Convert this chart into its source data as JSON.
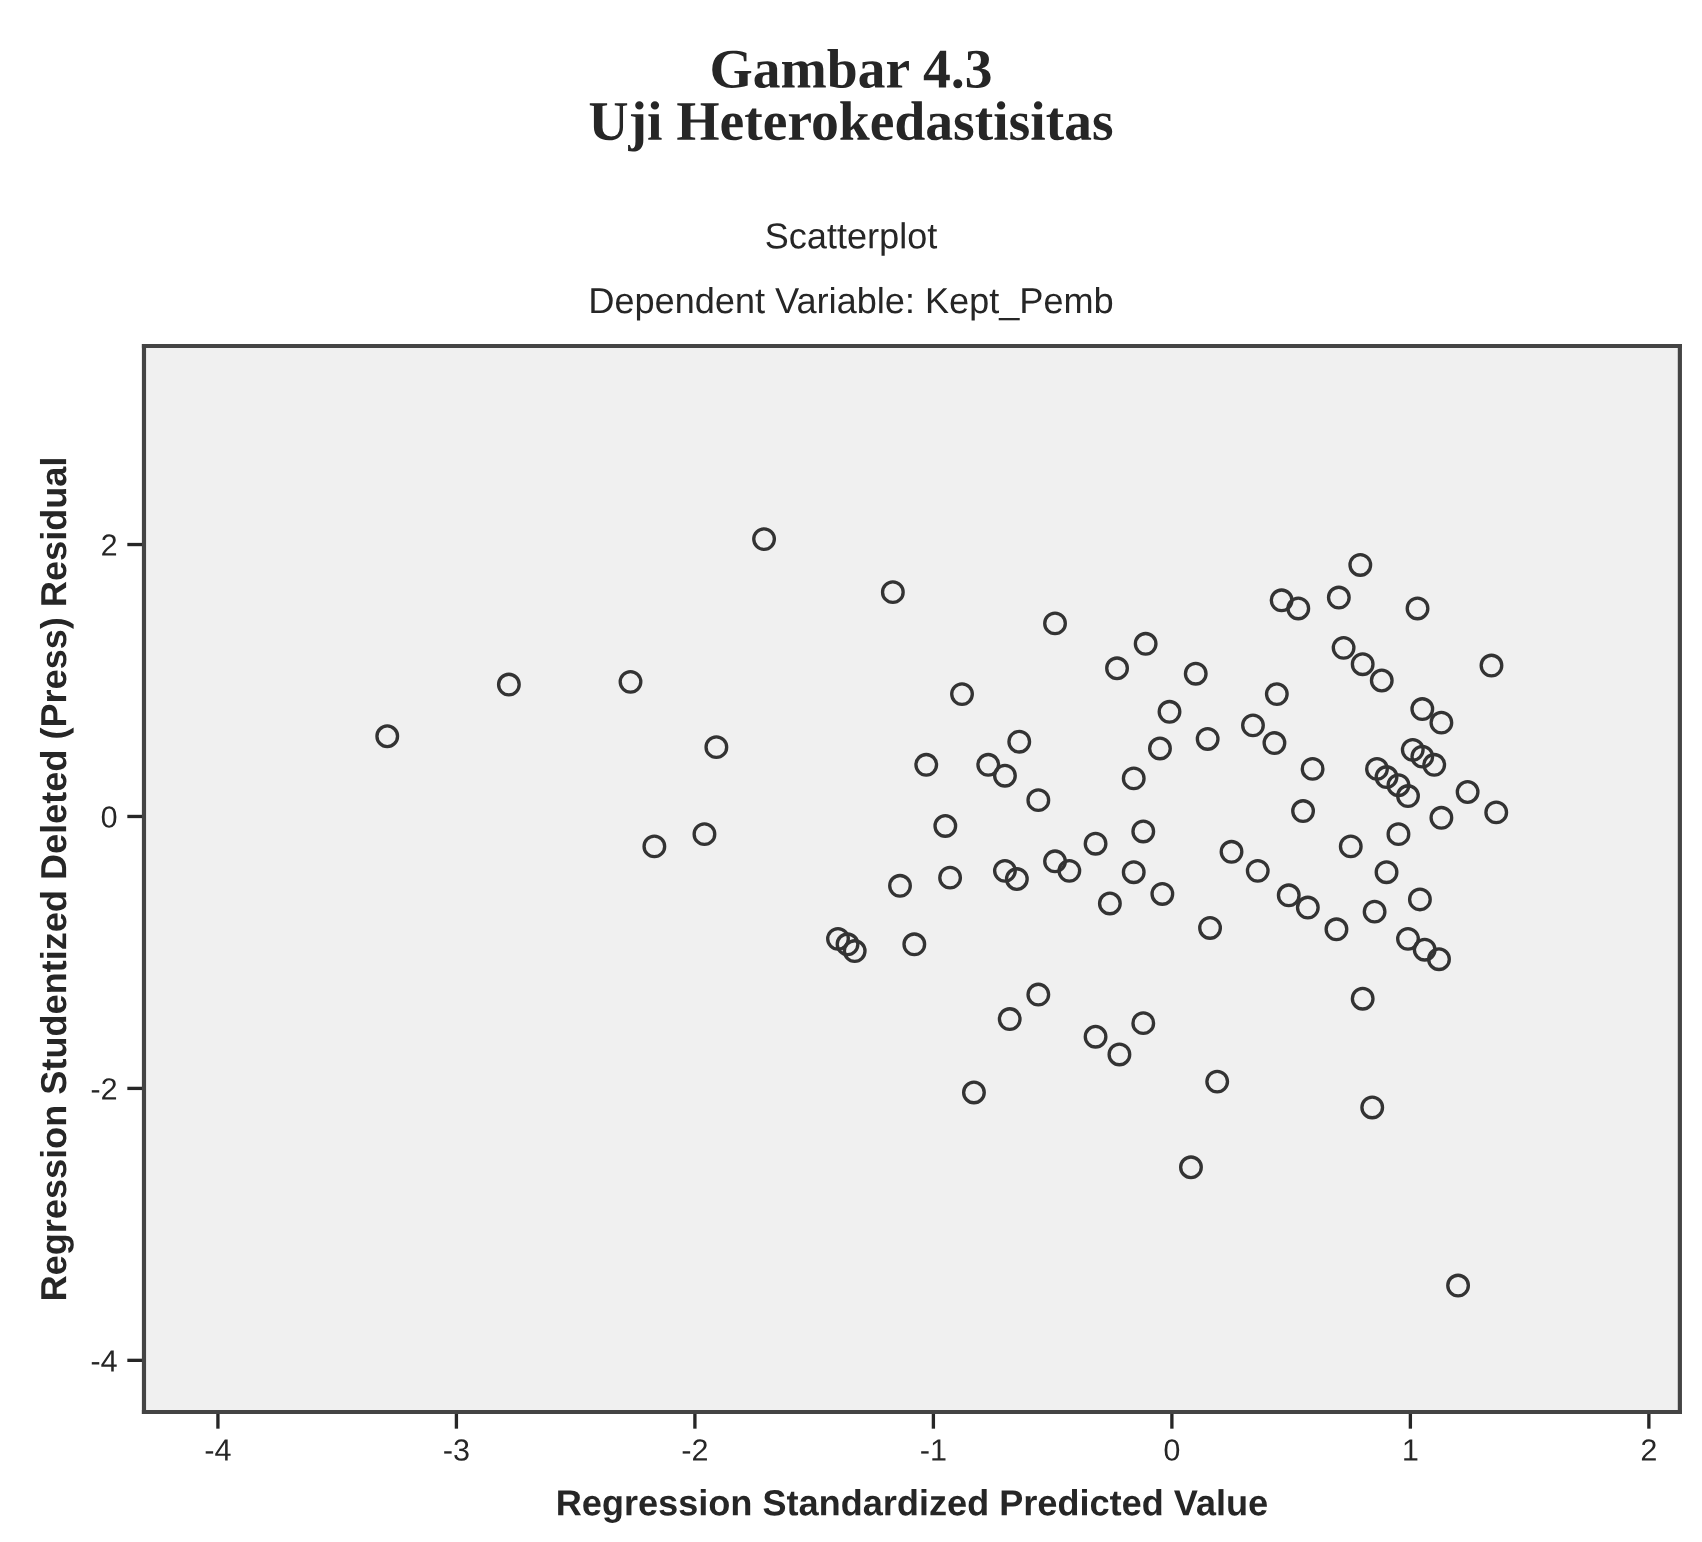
{
  "chart_data": {
    "type": "scatter",
    "title": "Gambar 4.3\nUji Heterokedastisitas",
    "subtitle": "Scatterplot\nDependent Variable: Kept_Pemb",
    "xlabel": "Regression Standardized Predicted Value",
    "ylabel": "Regression Studentized Deleted (Press) Residual",
    "xlim": [
      -4.31,
      2.13
    ],
    "ylim": [
      -4.38,
      3.46
    ],
    "xticks": [
      -4,
      -3,
      -2,
      -1,
      0,
      1,
      2
    ],
    "yticks": [
      -4,
      -2,
      0,
      2
    ],
    "grid": false,
    "marker": "circle",
    "series": [
      {
        "color": "#333333",
        "x": [
          -1.71,
          -1.17,
          -2.78,
          -2.27,
          -3.29,
          -1.91,
          -1.03,
          -1.96,
          -2.17,
          -1.14,
          -1.4,
          -1.36,
          -1.33,
          -1.08,
          -0.49,
          -0.88,
          -0.11,
          -0.23,
          0.1,
          -0.01,
          0.15,
          0.44,
          0.46,
          0.53,
          0.7,
          0.79,
          1.03,
          0.72,
          0.8,
          0.88,
          1.34,
          1.05,
          1.13,
          0.34,
          0.43,
          0.59,
          -0.05,
          -0.16,
          -0.64,
          -0.77,
          -0.7,
          -0.56,
          1.01,
          1.05,
          1.1,
          0.86,
          0.9,
          0.95,
          0.99,
          1.24,
          1.36,
          1.13,
          0.55,
          0.95,
          0.75,
          0.9,
          1.04,
          0.85,
          0.69,
          0.57,
          0.49,
          0.36,
          0.25,
          -0.12,
          -0.32,
          -0.49,
          -0.43,
          -0.16,
          -0.04,
          -0.26,
          -0.7,
          -0.65,
          -0.93,
          -0.95,
          0.16,
          0.99,
          1.06,
          1.12,
          0.8,
          0.84,
          1.2,
          0.08,
          0.19,
          -0.12,
          -0.32,
          -0.22,
          -0.56,
          -0.68,
          -0.83
        ],
        "values": [
          2.04,
          1.65,
          0.97,
          0.99,
          0.59,
          0.51,
          0.38,
          -0.13,
          -0.22,
          -0.51,
          -0.9,
          -0.94,
          -0.99,
          -0.94,
          1.42,
          0.9,
          1.27,
          1.09,
          1.05,
          0.77,
          0.57,
          0.9,
          1.59,
          1.53,
          1.61,
          1.85,
          1.53,
          1.24,
          1.12,
          1.0,
          1.11,
          0.79,
          0.69,
          0.67,
          0.54,
          0.35,
          0.5,
          0.28,
          0.55,
          0.38,
          0.3,
          0.12,
          0.49,
          0.44,
          0.38,
          0.35,
          0.29,
          0.23,
          0.15,
          0.18,
          0.03,
          -0.01,
          0.04,
          -0.13,
          -0.22,
          -0.41,
          -0.61,
          -0.7,
          -0.83,
          -0.67,
          -0.58,
          -0.4,
          -0.26,
          -0.11,
          -0.2,
          -0.33,
          -0.4,
          -0.41,
          -0.57,
          -0.64,
          -0.4,
          -0.46,
          -0.45,
          -0.07,
          -0.82,
          -0.9,
          -0.98,
          -1.05,
          -1.34,
          -2.14,
          -3.45,
          -2.58,
          -1.95,
          -1.52,
          -1.62,
          -1.75,
          -1.31,
          -1.49,
          -2.03
        ]
      }
    ]
  }
}
